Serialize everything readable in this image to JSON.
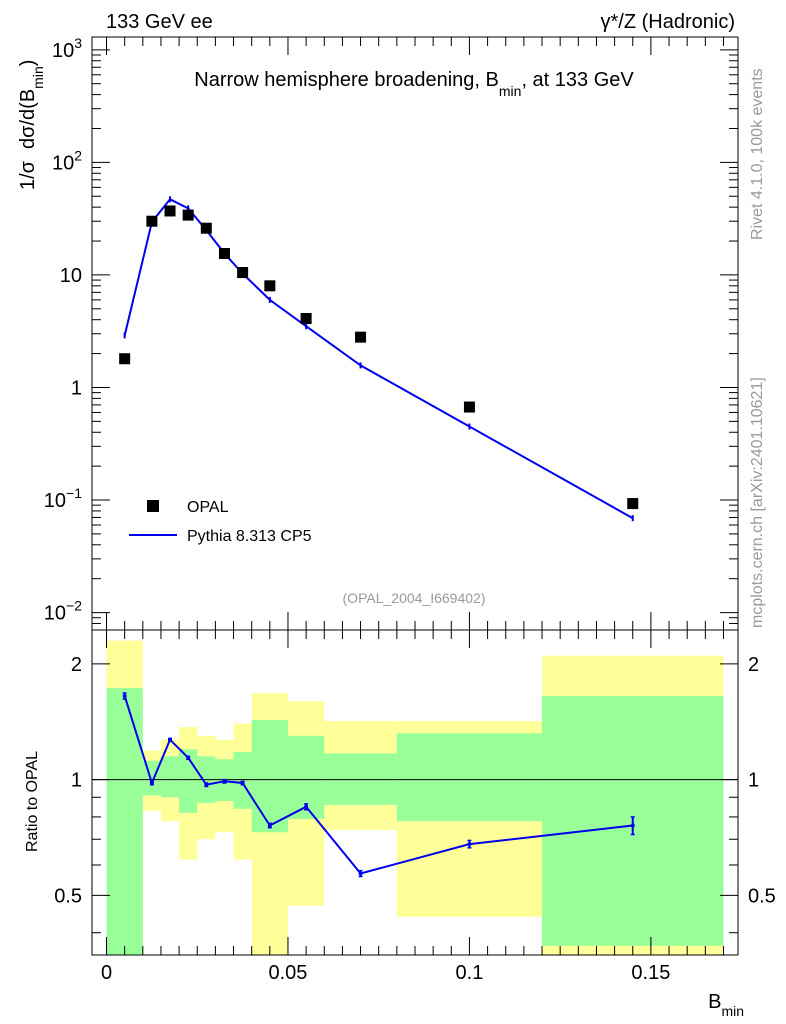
{
  "header": {
    "left": "133 GeV ee",
    "right": "γ*/Z (Hadronic)"
  },
  "side_labels": {
    "rivet": "Rivet 4.1.0,  100k events",
    "mcplots": "mcplots.cern.ch [arXiv:2401.10621]"
  },
  "colors": {
    "mc": "#0000ee",
    "data": "#000000",
    "band_inner": "#99ff99",
    "band_outer": "#ffff99"
  },
  "chart_data": [
    {
      "type": "scatter",
      "title": "Narrow hemisphere broadening, B_min, at 133 GeV",
      "title_main": "Narrow hemisphere broadening, B",
      "title_sub": "min",
      "title_tail": ", at 133 GeV",
      "ylabel": "1/σ  dσ/d(B_min)",
      "ylabel_parts": [
        "1/σ",
        "dσ/d(B",
        "min",
        ")"
      ],
      "yscale": "log",
      "ylim": [
        0.007,
        1300
      ],
      "xlim": [
        -0.004,
        0.174
      ],
      "ytick_labels": [
        {
          "value": 0.01,
          "base": "10",
          "exp": "−2"
        },
        {
          "value": 0.1,
          "base": "10",
          "exp": "−1"
        },
        {
          "value": 1,
          "base": "1",
          "exp": ""
        },
        {
          "value": 10,
          "base": "10",
          "exp": ""
        },
        {
          "value": 100,
          "base": "10",
          "exp": "2"
        },
        {
          "value": 1000,
          "base": "10",
          "exp": "3"
        }
      ],
      "watermark": "(OPAL_2004_I669402)",
      "legend": {
        "position": "bottom-left",
        "entries": [
          "OPAL",
          "Pythia 8.313 CP5"
        ]
      },
      "series": [
        {
          "name": "OPAL",
          "style": "markers",
          "x": [
            0.005,
            0.0125,
            0.0175,
            0.0225,
            0.0275,
            0.0325,
            0.0375,
            0.045,
            0.055,
            0.07,
            0.1,
            0.145
          ],
          "y": [
            1.8,
            30,
            37,
            34,
            26,
            15.5,
            10.5,
            8.0,
            4.1,
            2.8,
            0.67,
            0.093
          ]
        },
        {
          "name": "Pythia 8.313 CP5",
          "style": "line",
          "x": [
            0.005,
            0.0125,
            0.0175,
            0.0225,
            0.0275,
            0.0325,
            0.0375,
            0.045,
            0.055,
            0.07,
            0.1,
            0.145
          ],
          "y": [
            2.9,
            29.5,
            47,
            39,
            25,
            15.5,
            10.3,
            6.0,
            3.5,
            1.57,
            0.45,
            0.069
          ]
        }
      ]
    },
    {
      "type": "line",
      "ylabel": "Ratio to OPAL",
      "xlabel": "B_min",
      "xlabel_main": "B",
      "xlabel_sub": "min",
      "yscale": "log",
      "ylim": [
        0.35,
        2.45
      ],
      "xlim": [
        -0.004,
        0.174
      ],
      "xtick_labels": [
        {
          "value": 0,
          "label": "0"
        },
        {
          "value": 0.05,
          "label": "0.05"
        },
        {
          "value": 0.1,
          "label": "0.1"
        },
        {
          "value": 0.15,
          "label": "0.15"
        }
      ],
      "ytick_labels": [
        {
          "value": 0.5,
          "label": "0.5"
        },
        {
          "value": 1,
          "label": "1"
        },
        {
          "value": 2,
          "label": "2"
        }
      ],
      "bands": [
        {
          "x0": 0.0,
          "x1": 0.01,
          "inner": [
            0.3,
            1.73
          ],
          "outer": [
            0.3,
            2.3
          ]
        },
        {
          "x0": 0.01,
          "x1": 0.015,
          "inner": [
            0.91,
            1.12
          ],
          "outer": [
            0.83,
            1.19
          ]
        },
        {
          "x0": 0.015,
          "x1": 0.02,
          "inner": [
            0.9,
            1.15
          ],
          "outer": [
            0.78,
            1.27
          ]
        },
        {
          "x0": 0.02,
          "x1": 0.025,
          "inner": [
            0.82,
            1.2
          ],
          "outer": [
            0.62,
            1.37
          ]
        },
        {
          "x0": 0.025,
          "x1": 0.03,
          "inner": [
            0.87,
            1.15
          ],
          "outer": [
            0.7,
            1.3
          ]
        },
        {
          "x0": 0.03,
          "x1": 0.035,
          "inner": [
            0.88,
            1.13
          ],
          "outer": [
            0.73,
            1.27
          ]
        },
        {
          "x0": 0.035,
          "x1": 0.04,
          "inner": [
            0.84,
            1.18
          ],
          "outer": [
            0.62,
            1.4
          ]
        },
        {
          "x0": 0.04,
          "x1": 0.05,
          "inner": [
            0.73,
            1.43
          ],
          "outer": [
            0.3,
            1.68
          ]
        },
        {
          "x0": 0.05,
          "x1": 0.06,
          "inner": [
            0.79,
            1.3
          ],
          "outer": [
            0.47,
            1.6
          ]
        },
        {
          "x0": 0.06,
          "x1": 0.08,
          "inner": [
            0.86,
            1.17
          ],
          "outer": [
            0.74,
            1.42
          ]
        },
        {
          "x0": 0.08,
          "x1": 0.12,
          "inner": [
            0.78,
            1.32
          ],
          "outer": [
            0.44,
            1.42
          ]
        },
        {
          "x0": 0.12,
          "x1": 0.17,
          "inner": [
            0.37,
            1.65
          ],
          "outer": [
            0.3,
            2.1
          ]
        }
      ],
      "series": [
        {
          "name": "Pythia 8.313 CP5 / OPAL",
          "x": [
            0.005,
            0.0125,
            0.0175,
            0.0225,
            0.0275,
            0.0325,
            0.0375,
            0.045,
            0.055,
            0.07,
            0.1,
            0.145
          ],
          "y": [
            1.65,
            0.98,
            1.27,
            1.14,
            0.97,
            0.99,
            0.98,
            0.76,
            0.85,
            0.57,
            0.68,
            0.76
          ],
          "err": [
            0.03,
            0.01,
            0.01,
            0.01,
            0.01,
            0.01,
            0.01,
            0.01,
            0.015,
            0.01,
            0.015,
            0.04
          ]
        }
      ]
    }
  ]
}
